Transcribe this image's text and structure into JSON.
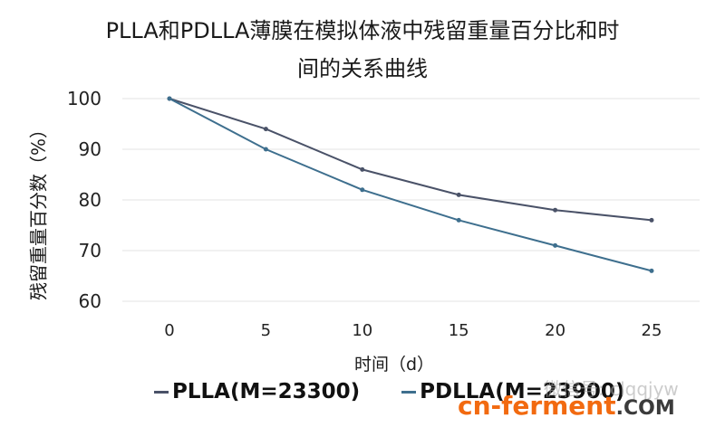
{
  "chart_data": {
    "type": "line",
    "title": "PLLA和PDLLA薄膜在模拟体液中残留重量百分比和时间的关系曲线",
    "title_line1": "PLLA和PDLLA薄膜在模拟体液中残留重量百分比和时",
    "title_line2": "间的关系曲线",
    "xlabel": "时间（d）",
    "ylabel": "残留重量百分数（%）",
    "x": [
      0,
      5,
      10,
      15,
      20,
      25
    ],
    "x_ticks": [
      "0",
      "5",
      "10",
      "15",
      "20",
      "25"
    ],
    "y_ticks": [
      "100",
      "90",
      "80",
      "70",
      "60"
    ],
    "ylim": [
      60,
      100
    ],
    "grid": true,
    "legend_position": "bottom",
    "series": [
      {
        "name": "PLLA(M=23300)",
        "color": "#4a5268",
        "values": [
          100,
          94,
          86,
          81,
          78,
          76
        ]
      },
      {
        "name": "PDLLA(M=23900)",
        "color": "#3e6f8e",
        "values": [
          100,
          90,
          82,
          76,
          71,
          66
        ]
      }
    ]
  },
  "watermark": {
    "wechat": "微信号: clqqjyw",
    "site_main": "cn-ferment",
    "site_suffix": ".COM"
  }
}
